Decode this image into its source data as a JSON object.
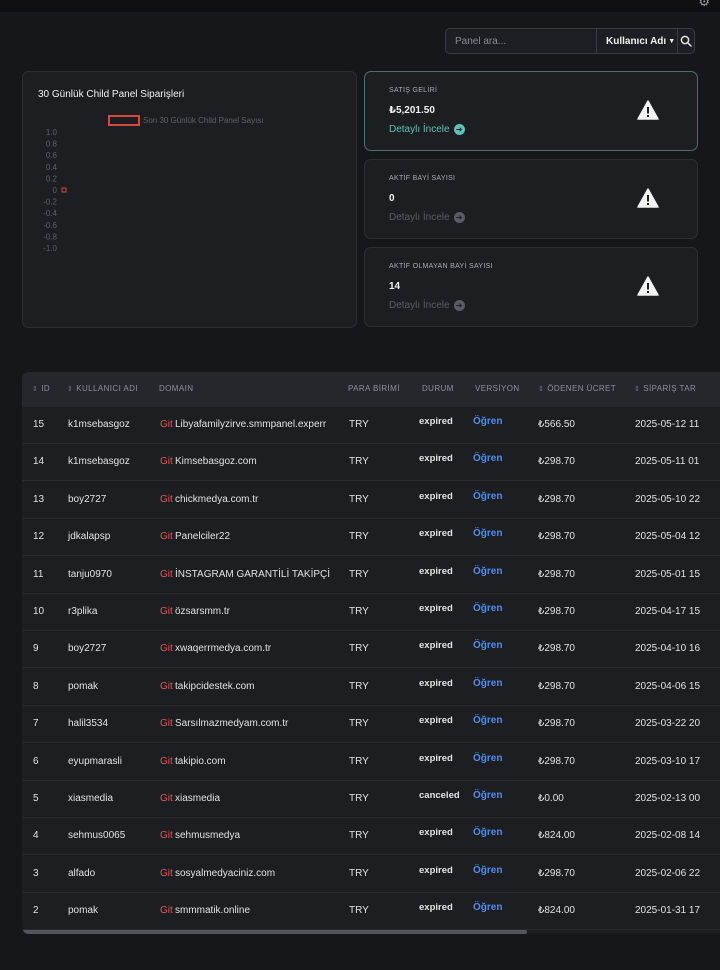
{
  "search": {
    "placeholder": "Panel ara...",
    "filter_label": "Kullanıcı Adı"
  },
  "chart_data": {
    "type": "line",
    "title": "30 Günlük Child Panel Siparişleri",
    "series": [
      {
        "name": "Son 30 Günlük Child Panel Sayısı",
        "values": [
          0
        ]
      }
    ],
    "ylim": [
      -1.0,
      1.0
    ],
    "yticks": [
      "1.0",
      "0.8",
      "0.6",
      "0.4",
      "0.2",
      "0",
      "-0.2",
      "-0.4",
      "-0.6",
      "-0.8",
      "-1.0"
    ],
    "legend": "top",
    "color": "#d9483e"
  },
  "stats": [
    {
      "label": "SATIŞ GELİRİ",
      "value": "₺5,201.50",
      "link": "Detaylı İncele",
      "active": true
    },
    {
      "label": "AKTİF BAYİ SAYISI",
      "value": "0",
      "link": "Detaylı İncele",
      "active": false
    },
    {
      "label": "AKTİF OLMAYAN BAYİ SAYISI",
      "value": "14",
      "link": "Detaylı İncele",
      "active": false
    }
  ],
  "table": {
    "headers": {
      "id": "ID",
      "user": "KULLANICI ADI",
      "domain": "DOMAIN",
      "currency": "PARA BİRİMİ",
      "status": "DURUM",
      "version": "VERSİYON",
      "fee": "ÖDENEN ÜCRET",
      "date": "SİPARİŞ TAR"
    },
    "git_label": "Git",
    "rows": [
      {
        "id": "15",
        "user": "k1msebasgoz",
        "domain": "Libyafamilyzirve.smmpanel.experr",
        "currency": "TRY",
        "status": "expired",
        "version": "Öğren",
        "fee": "₺566.50",
        "date": "2025-05-12 11"
      },
      {
        "id": "14",
        "user": "k1msebasgoz",
        "domain": "Kimsebasgoz.com",
        "currency": "TRY",
        "status": "expired",
        "version": "Öğren",
        "fee": "₺298.70",
        "date": "2025-05-11 01"
      },
      {
        "id": "13",
        "user": "boy2727",
        "domain": "chickmedya.com.tr",
        "currency": "TRY",
        "status": "expired",
        "version": "Öğren",
        "fee": "₺298.70",
        "date": "2025-05-10 22"
      },
      {
        "id": "12",
        "user": "jdkalapsp",
        "domain": "Panelciler22",
        "currency": "TRY",
        "status": "expired",
        "version": "Öğren",
        "fee": "₺298.70",
        "date": "2025-05-04 12"
      },
      {
        "id": "11",
        "user": "tanju0970",
        "domain": "İNSTAGRAM GARANTİLİ TAKİPÇİ",
        "currency": "TRY",
        "status": "expired",
        "version": "Öğren",
        "fee": "₺298.70",
        "date": "2025-05-01 15"
      },
      {
        "id": "10",
        "user": "r3plika",
        "domain": "özsarsmm.tr",
        "currency": "TRY",
        "status": "expired",
        "version": "Öğren",
        "fee": "₺298.70",
        "date": "2025-04-17 15"
      },
      {
        "id": "9",
        "user": "boy2727",
        "domain": "xwaqerrmedya.com.tr",
        "currency": "TRY",
        "status": "expired",
        "version": "Öğren",
        "fee": "₺298.70",
        "date": "2025-04-10 16"
      },
      {
        "id": "8",
        "user": "pomak",
        "domain": "takipcidestek.com",
        "currency": "TRY",
        "status": "expired",
        "version": "Öğren",
        "fee": "₺298.70",
        "date": "2025-04-06 15"
      },
      {
        "id": "7",
        "user": "halil3534",
        "domain": "Sarsılmazmedyam.com.tr",
        "currency": "TRY",
        "status": "expired",
        "version": "Öğren",
        "fee": "₺298.70",
        "date": "2025-03-22 20"
      },
      {
        "id": "6",
        "user": "eyupmarasli",
        "domain": "takipio.com",
        "currency": "TRY",
        "status": "expired",
        "version": "Öğren",
        "fee": "₺298.70",
        "date": "2025-03-10 17"
      },
      {
        "id": "5",
        "user": "xiasmedia",
        "domain": "xiasmedia",
        "currency": "TRY",
        "status": "canceled",
        "version": "Öğren",
        "fee": "₺0.00",
        "date": "2025-02-13 00"
      },
      {
        "id": "4",
        "user": "sehmus0065",
        "domain": "sehmusmedya",
        "currency": "TRY",
        "status": "expired",
        "version": "Öğren",
        "fee": "₺824.00",
        "date": "2025-02-08 14"
      },
      {
        "id": "3",
        "user": "alfado",
        "domain": "sosyalmedyaciniz.com",
        "currency": "TRY",
        "status": "expired",
        "version": "Öğren",
        "fee": "₺298.70",
        "date": "2025-02-06 22"
      },
      {
        "id": "2",
        "user": "pomak",
        "domain": "smmmatik.online",
        "currency": "TRY",
        "status": "expired",
        "version": "Öğren",
        "fee": "₺824.00",
        "date": "2025-01-31 17"
      }
    ]
  }
}
